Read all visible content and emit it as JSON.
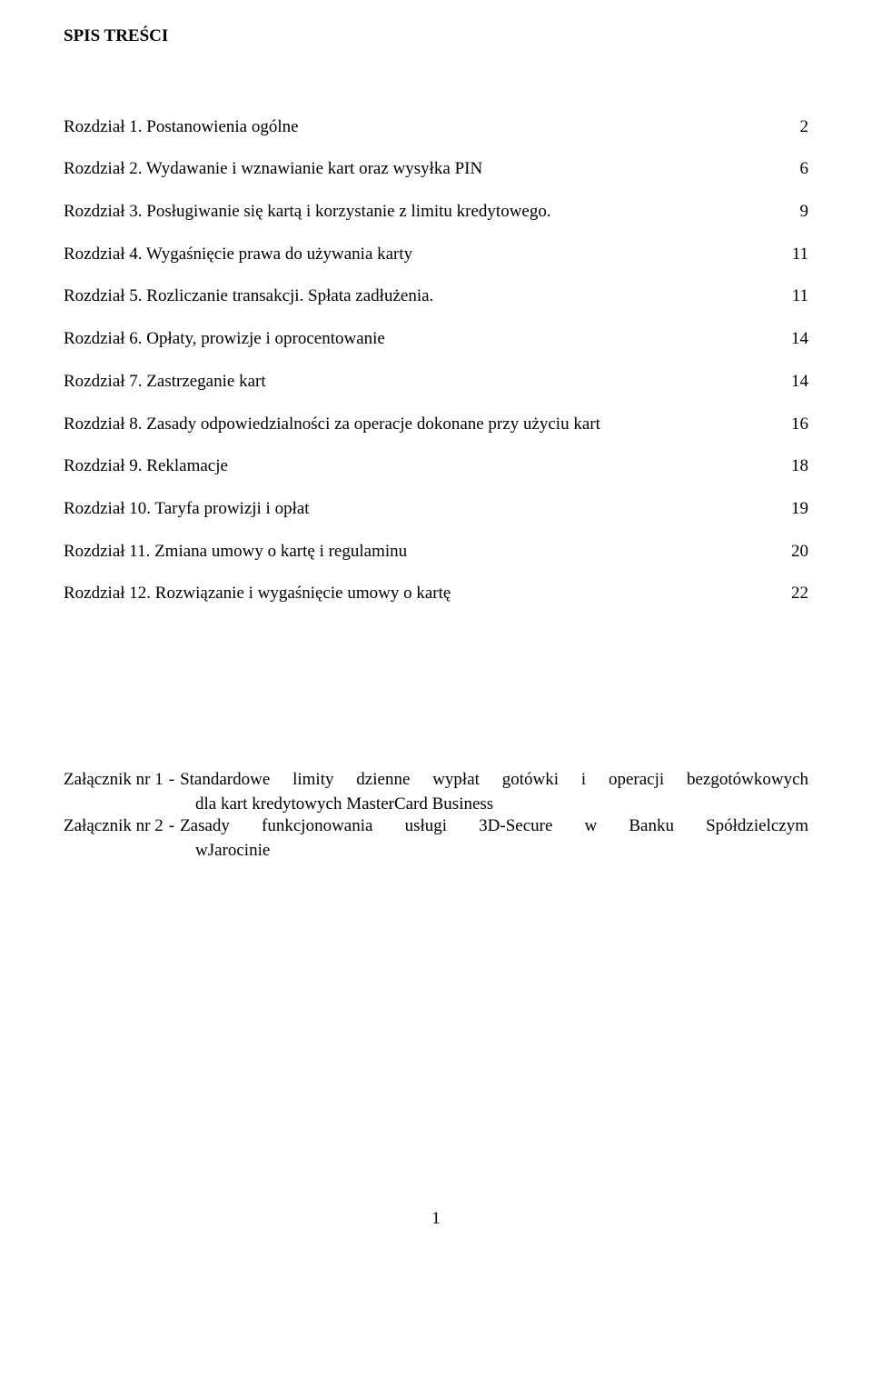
{
  "title": "SPIS TREŚCI",
  "toc": [
    {
      "label": "Rozdział 1. Postanowienia ogólne",
      "page": "2"
    },
    {
      "label": "Rozdział 2. Wydawanie i wznawianie kart oraz wysyłka PIN",
      "page": "6"
    },
    {
      "label": "Rozdział 3. Posługiwanie się kartą i korzystanie z limitu kredytowego.",
      "page": "9"
    },
    {
      "label": "Rozdział 4. Wygaśnięcie prawa do używania karty",
      "page": "11"
    },
    {
      "label": "Rozdział 5. Rozliczanie transakcji. Spłata zadłużenia.",
      "page": "11"
    },
    {
      "label": "Rozdział 6. Opłaty, prowizje i oprocentowanie",
      "page": "14"
    },
    {
      "label": "Rozdział 7. Zastrzeganie kart",
      "page": "14"
    },
    {
      "label": "Rozdział 8. Zasady odpowiedzialności za operacje dokonane przy użyciu kart",
      "page": "16"
    },
    {
      "label": "Rozdział 9. Reklamacje",
      "page": "18"
    },
    {
      "label": "Rozdział 10. Taryfa prowizji i opłat",
      "page": "19"
    },
    {
      "label": "Rozdział 11. Zmiana umowy o kartę i regulaminu",
      "page": "20"
    },
    {
      "label": "Rozdział 12. Rozwiązanie i wygaśnięcie umowy o kartę",
      "page": "22"
    }
  ],
  "attachments": [
    {
      "prefix": "Załącznik nr 1",
      "sep": "-",
      "line1": "Standardowe limity dzienne wypłat gotówki i operacji bezgotówkowych",
      "line2": "dla kart kredytowych MasterCard Business"
    },
    {
      "prefix": "Załącznik nr 2",
      "sep": "-",
      "line1": "Zasady funkcjonowania usługi 3D-Secure w Banku Spółdzielczym",
      "line2": "wJarocinie"
    }
  ],
  "page_number": "1"
}
